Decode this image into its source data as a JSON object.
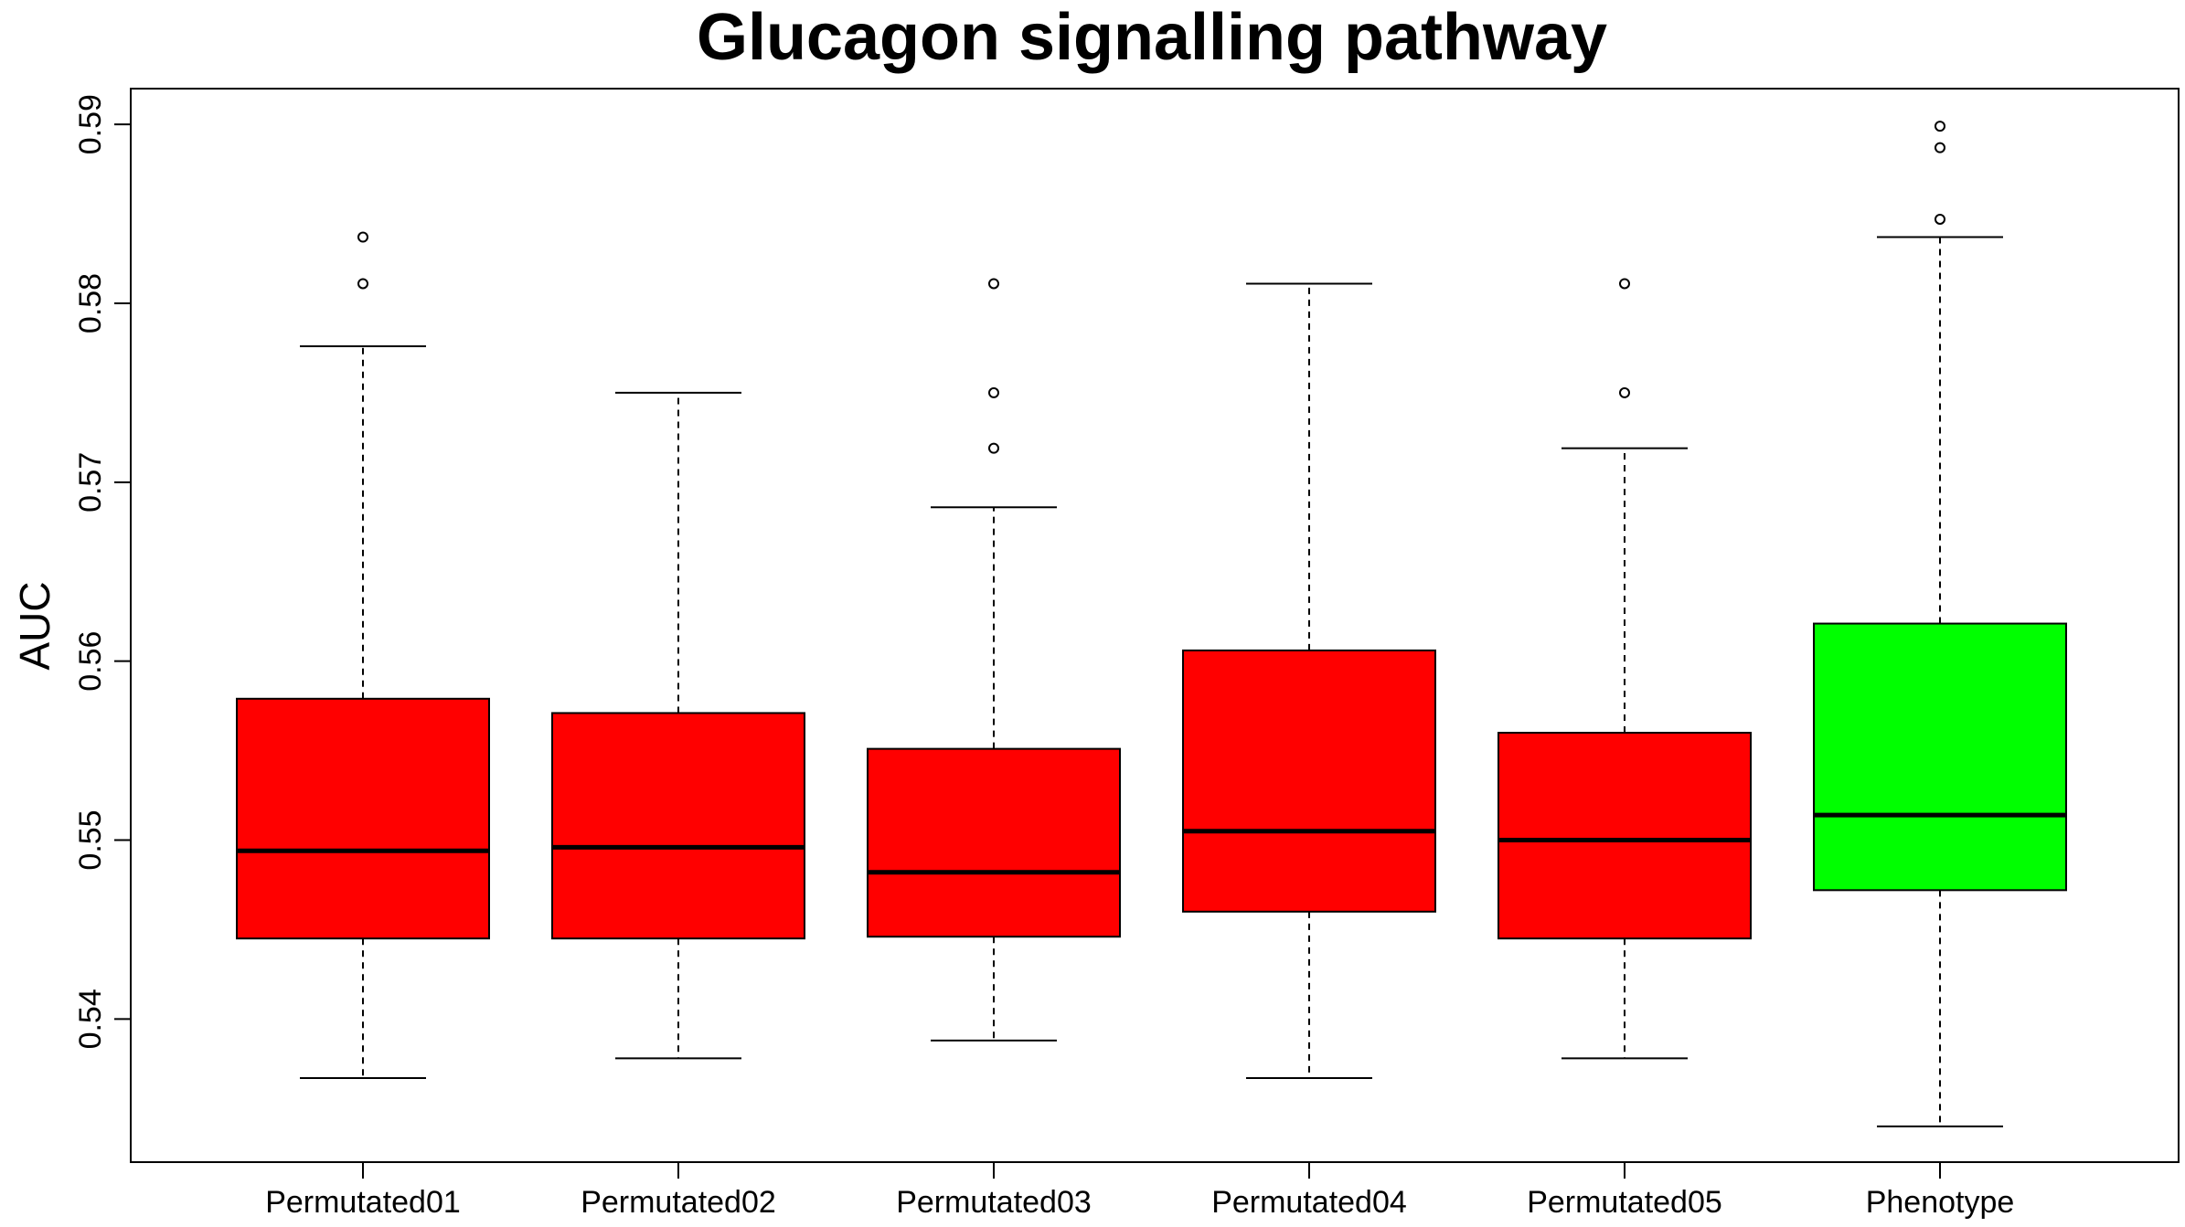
{
  "chart_data": {
    "type": "box",
    "title": "Glucagon signalling pathway",
    "xlabel": "",
    "ylabel": "AUC",
    "ylim": [
      0.532,
      0.592
    ],
    "y_ticks": [
      "0.54",
      "0.55",
      "0.56",
      "0.57",
      "0.58",
      "0.59"
    ],
    "grid": false,
    "legend": "none",
    "categories": [
      "Permutated01",
      "Permutated02",
      "Permutated03",
      "Permutated04",
      "Permutated05",
      "Phenotype"
    ],
    "series": [
      {
        "category": "Permutated01",
        "color": "#ff0000",
        "whisker_low": 0.5367,
        "q1": 0.5445,
        "median": 0.5494,
        "q3": 0.5579,
        "whisker_high": 0.5776,
        "outliers": [
          0.5811,
          0.5837
        ]
      },
      {
        "category": "Permutated02",
        "color": "#ff0000",
        "whisker_low": 0.5378,
        "q1": 0.5445,
        "median": 0.5496,
        "q3": 0.5571,
        "whisker_high": 0.575,
        "outliers": []
      },
      {
        "category": "Permutated03",
        "color": "#ff0000",
        "whisker_low": 0.5388,
        "q1": 0.5446,
        "median": 0.5482,
        "q3": 0.5551,
        "whisker_high": 0.5686,
        "outliers": [
          0.5719,
          0.575,
          0.5811
        ]
      },
      {
        "category": "Permutated04",
        "color": "#ff0000",
        "whisker_low": 0.5367,
        "q1": 0.546,
        "median": 0.5505,
        "q3": 0.5606,
        "whisker_high": 0.5811,
        "outliers": []
      },
      {
        "category": "Permutated05",
        "color": "#ff0000",
        "whisker_low": 0.5378,
        "q1": 0.5445,
        "median": 0.55,
        "q3": 0.556,
        "whisker_high": 0.5719,
        "outliers": [
          0.575,
          0.5811
        ]
      },
      {
        "category": "Phenotype",
        "color": "#00ff00",
        "whisker_low": 0.534,
        "q1": 0.5472,
        "median": 0.5514,
        "q3": 0.5621,
        "whisker_high": 0.5837,
        "outliers": [
          0.5847,
          0.5887,
          0.5899
        ]
      }
    ]
  }
}
